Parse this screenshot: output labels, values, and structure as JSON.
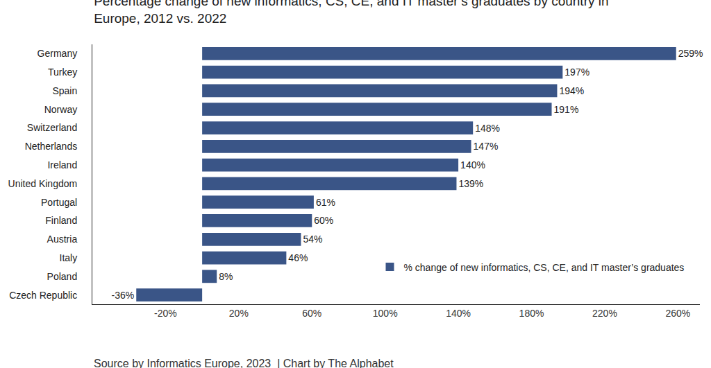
{
  "chart_data": {
    "type": "bar",
    "orientation": "horizontal",
    "title": "Percentage change of new informatics, CS, CE, and IT master’s graduates by country in Europe, 2012 vs. 2022",
    "categories": [
      "Germany",
      "Turkey",
      "Spain",
      "Norway",
      "Switzerland",
      "Netherlands",
      "Ireland",
      "United Kingdom",
      "Portugal",
      "Finland",
      "Austria",
      "Italy",
      "Poland",
      "Czech Republic"
    ],
    "series": [
      {
        "name": "% change of new informatics, CS, CE, and IT master’s graduates",
        "color": "#3a5587",
        "values": [
          259,
          197,
          194,
          191,
          148,
          147,
          140,
          139,
          61,
          60,
          54,
          46,
          8,
          -36
        ],
        "value_labels": [
          "259%",
          "197%",
          "194%",
          "191%",
          "148%",
          "147%",
          "140%",
          "139%",
          "61%",
          "60%",
          "54%",
          "46%",
          "8%",
          "-36%"
        ]
      }
    ],
    "xlim": [
      -60,
      272
    ],
    "xticks": [
      {
        "value": -20,
        "label": "-20%"
      },
      {
        "value": 20,
        "label": "20%"
      },
      {
        "value": 60,
        "label": "60%"
      },
      {
        "value": 100,
        "label": "100%"
      },
      {
        "value": 140,
        "label": "140%"
      },
      {
        "value": 180,
        "label": "180%"
      },
      {
        "value": 220,
        "label": "220%"
      },
      {
        "value": 260,
        "label": "260%"
      }
    ],
    "grid": false,
    "data_labels": true,
    "legend": "lower right",
    "annotations": [
      "Source by Informatics Europe, 2023  | Chart by The Alphabet"
    ]
  }
}
